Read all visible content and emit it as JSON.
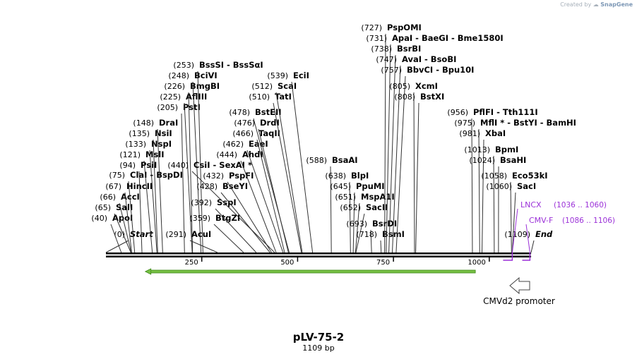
{
  "watermark": {
    "prefix": "Created by",
    "brand": "SnapGene"
  },
  "map": {
    "name": "pLV-75-2",
    "length_label": "1109 bp",
    "length_bp": 1109,
    "start_label": "Start",
    "end_label": "End",
    "ticks": [
      250,
      500,
      750,
      1000
    ]
  },
  "colors": {
    "line": "#000000",
    "text": "#000000",
    "primer": "#9b31d8",
    "orf": "#76c043",
    "promoter": "#444444"
  },
  "sites": [
    {
      "pos": "(0)",
      "name": "Start",
      "bp": 0,
      "italic": true
    },
    {
      "pos": "(40)",
      "name": "ApoI",
      "bp": 40
    },
    {
      "pos": "(65)",
      "name": "SalI",
      "bp": 65
    },
    {
      "pos": "(66)",
      "name": "AccI",
      "bp": 66
    },
    {
      "pos": "(67)",
      "name": "HincII",
      "bp": 67
    },
    {
      "pos": "(75)",
      "name": "ClaI  -  BspDI",
      "bp": 75
    },
    {
      "pos": "(94)",
      "name": "PsiI",
      "bp": 94
    },
    {
      "pos": "(121)",
      "name": "MslI",
      "bp": 121
    },
    {
      "pos": "(133)",
      "name": "NspI",
      "bp": 133
    },
    {
      "pos": "(135)",
      "name": "NsiI",
      "bp": 135
    },
    {
      "pos": "(148)",
      "name": "DraI",
      "bp": 148
    },
    {
      "pos": "(205)",
      "name": "PstI",
      "bp": 205
    },
    {
      "pos": "(225)",
      "name": "AflIII",
      "bp": 225
    },
    {
      "pos": "(226)",
      "name": "BmgBI",
      "bp": 226
    },
    {
      "pos": "(248)",
      "name": "BciVI",
      "bp": 248
    },
    {
      "pos": "(253)",
      "name": "BssSI  -  BssSαI",
      "bp": 253
    },
    {
      "pos": "(291)",
      "name": "AcuI",
      "bp": 291
    },
    {
      "pos": "(359)",
      "name": "BtgZI",
      "bp": 359
    },
    {
      "pos": "(392)",
      "name": "SspI",
      "bp": 392
    },
    {
      "pos": "(428)",
      "name": "BseYI",
      "bp": 428
    },
    {
      "pos": "(432)",
      "name": "PspFI",
      "bp": 432
    },
    {
      "pos": "(440)",
      "name": "CsiI  -  SexAI *",
      "bp": 440
    },
    {
      "pos": "(444)",
      "name": "AhdI",
      "bp": 444
    },
    {
      "pos": "(462)",
      "name": "EaeI",
      "bp": 462
    },
    {
      "pos": "(466)",
      "name": "TaqII",
      "bp": 466
    },
    {
      "pos": "(476)",
      "name": "DrdI",
      "bp": 476
    },
    {
      "pos": "(478)",
      "name": "BstEII",
      "bp": 478
    },
    {
      "pos": "(510)",
      "name": "TatI",
      "bp": 510
    },
    {
      "pos": "(512)",
      "name": "ScaI",
      "bp": 512
    },
    {
      "pos": "(539)",
      "name": "EciI",
      "bp": 539
    },
    {
      "pos": "(588)",
      "name": "BsaAI",
      "bp": 588
    },
    {
      "pos": "(638)",
      "name": "BlpI",
      "bp": 638
    },
    {
      "pos": "(645)",
      "name": "PpuMI",
      "bp": 645
    },
    {
      "pos": "(651)",
      "name": "MspA1I",
      "bp": 651
    },
    {
      "pos": "(652)",
      "name": "SacII",
      "bp": 652
    },
    {
      "pos": "(693)",
      "name": "BsrDI",
      "bp": 693
    },
    {
      "pos": "(718)",
      "name": "BsmI",
      "bp": 718
    },
    {
      "pos": "(727)",
      "name": "PspOMI",
      "bp": 727
    },
    {
      "pos": "(731)",
      "name": "ApaI  -  BaeGI  -  Bme1580I",
      "bp": 731
    },
    {
      "pos": "(738)",
      "name": "BsrBI",
      "bp": 738
    },
    {
      "pos": "(747)",
      "name": "AvaI  -  BsoBI",
      "bp": 747
    },
    {
      "pos": "(757)",
      "name": "BbvCI  -  Bpu10I",
      "bp": 757
    },
    {
      "pos": "(805)",
      "name": "XcmI",
      "bp": 805
    },
    {
      "pos": "(808)",
      "name": "BstXI",
      "bp": 808
    },
    {
      "pos": "(956)",
      "name": "PflFI  -  Tth111I",
      "bp": 956
    },
    {
      "pos": "(975)",
      "name": "MflI *  -  BstYI  -  BamHI",
      "bp": 975
    },
    {
      "pos": "(981)",
      "name": "XbaI",
      "bp": 981
    },
    {
      "pos": "(1013)",
      "name": "BpmI",
      "bp": 1013
    },
    {
      "pos": "(1024)",
      "name": "BsaHI",
      "bp": 1024
    },
    {
      "pos": "(1058)",
      "name": "Eco53kI",
      "bp": 1058
    },
    {
      "pos": "(1060)",
      "name": "SacI",
      "bp": 1060
    },
    {
      "pos": "(1109)",
      "name": "End",
      "bp": 1109,
      "italic": true
    }
  ],
  "primers": [
    {
      "name": "LNCX",
      "range": "(1036 .. 1060)",
      "start": 1036,
      "end": 1060
    },
    {
      "name": "CMV-F",
      "range": "(1086 .. 1106)",
      "start": 1086,
      "end": 1106
    }
  ],
  "features": {
    "orf": {
      "start": 40,
      "end": 960,
      "direction": "reverse"
    },
    "promoter": {
      "name": "CMVd2 promoter",
      "direction": "reverse"
    }
  }
}
